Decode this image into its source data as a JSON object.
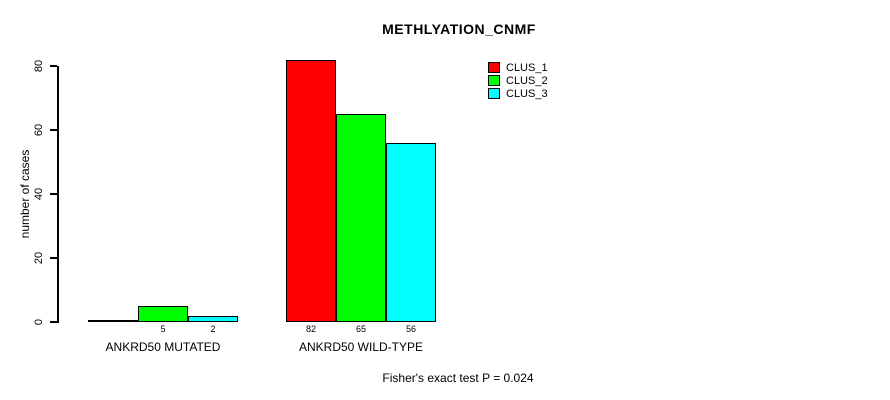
{
  "chart_data": {
    "type": "bar",
    "title": "METHLYATION_CNMF",
    "ylabel": "number of cases",
    "xlabel": "",
    "categories": [
      "ANKRD50 MUTATED",
      "ANKRD50 WILD-TYPE"
    ],
    "series": [
      {
        "name": "CLUS_1",
        "color": "#ff0000",
        "values": [
          0,
          82
        ]
      },
      {
        "name": "CLUS_2",
        "color": "#00ff00",
        "values": [
          5,
          65
        ]
      },
      {
        "name": "CLUS_3",
        "color": "#00ffff",
        "values": [
          2,
          56
        ]
      }
    ],
    "bar_value_labels": [
      [
        "",
        "5",
        "2"
      ],
      [
        "82",
        "65",
        "56"
      ]
    ],
    "ylim": [
      0,
      80
    ],
    "yticks": [
      0,
      20,
      40,
      60,
      80
    ],
    "grid": false,
    "legend_position": "top-right",
    "annotation": "Fisher's exact test P = 0.024"
  },
  "colors": {
    "background": "#ffffff",
    "axis": "#000000",
    "text": "#000000"
  }
}
